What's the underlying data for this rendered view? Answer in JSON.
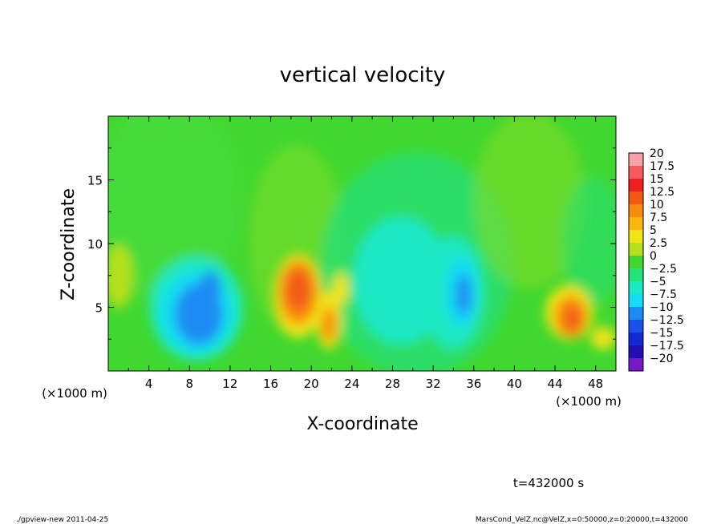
{
  "chart_data": {
    "type": "heatmap",
    "title": "vertical velocity",
    "xlabel": "X-coordinate",
    "ylabel": "Z-coordinate",
    "x_unit_label": "(×1000 m)",
    "y_unit_label": "(×1000 m)",
    "xlim": [
      0,
      50
    ],
    "ylim": [
      0,
      20
    ],
    "x_ticks": [
      "4",
      "8",
      "12",
      "16",
      "20",
      "24",
      "28",
      "32",
      "36",
      "40",
      "44",
      "48"
    ],
    "y_ticks": [
      "5",
      "10",
      "15"
    ],
    "time_label": "t=432000 s",
    "colorbar": {
      "labels": [
        "20",
        "17.5",
        "15",
        "12.5",
        "10",
        "7.5",
        "5",
        "2.5",
        "0",
        "−2.5",
        "−5",
        "−7.5",
        "−10",
        "−12.5",
        "−15",
        "−17.5",
        "−20"
      ],
      "levels": [
        20,
        17.5,
        15,
        12.5,
        10,
        7.5,
        5,
        2.5,
        0,
        -2.5,
        -5,
        -7.5,
        -10,
        -12.5,
        -15,
        -17.5,
        -20
      ],
      "colors": [
        "#f7a0a8",
        "#f45a5e",
        "#ec2020",
        "#f25a14",
        "#f88c10",
        "#fbb410",
        "#f2e414",
        "#b4e01c",
        "#40d830",
        "#24e478",
        "#1ce8c4",
        "#14dcf4",
        "#1c8cf4",
        "#1c50ec",
        "#1428d4",
        "#2010b4",
        "#7418c8"
      ]
    },
    "features": [
      {
        "x": 9.5,
        "z": 5,
        "value": -11
      },
      {
        "x": 18.5,
        "z": 6.5,
        "value": 13
      },
      {
        "x": 21.5,
        "z": 3.5,
        "value": 10
      },
      {
        "x": 34.5,
        "z": 6,
        "value": -10
      },
      {
        "x": 31,
        "z": 8,
        "value": -6
      },
      {
        "x": 45.5,
        "z": 4.5,
        "value": 12
      },
      {
        "x": 1,
        "z": 7.5,
        "value": 6
      },
      {
        "x": 48.5,
        "z": 2.5,
        "value": 7
      }
    ]
  },
  "footer": {
    "left": "./gpview-new  2011-04-25",
    "right": "MarsCond_VelZ.nc@VelZ,x=0:50000,z=0:20000,t=432000"
  }
}
